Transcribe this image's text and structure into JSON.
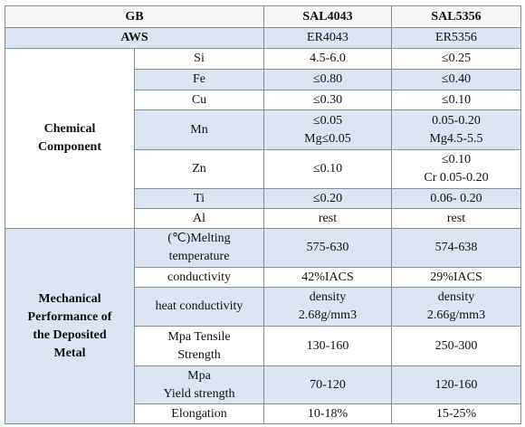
{
  "header": [
    "GB",
    "SAL4043",
    "SAL5356"
  ],
  "aws": [
    "AWS",
    "ER4043",
    "ER5356"
  ],
  "groups": [
    {
      "label": "Chemical\nComponent",
      "rows": [
        [
          "Si",
          "4.5-6.0",
          "≤0.25"
        ],
        [
          "Fe",
          "≤0.80",
          "≤0.40"
        ],
        [
          "Cu",
          "≤0.30",
          "≤0.10"
        ],
        [
          "Mn",
          "≤0.05\nMg≤0.05",
          "0.05-0.20\nMg4.5-5.5"
        ],
        [
          "Zn",
          "≤0.10",
          "≤0.10\nCr 0.05-0.20"
        ],
        [
          "Ti",
          "≤0.20",
          "0.06- 0.20"
        ],
        [
          "Al",
          "rest",
          "rest"
        ]
      ]
    },
    {
      "label": "Mechanical\nPerformance of\nthe Deposited\nMetal",
      "rows": [
        [
          "(℃)Melting\ntemperature",
          "575-630",
          "574-638"
        ],
        [
          "conductivity",
          "42%IACS",
          "29%IACS"
        ],
        [
          "heat conductivity",
          "density\n2.68g/mm3",
          "density\n2.66g/mm3"
        ],
        [
          "Mpa Tensile\nStrength",
          "130-160",
          "250-300"
        ],
        [
          "Mpa\nYield strength",
          "70-120",
          "120-160"
        ],
        [
          "Elongation",
          "10-18%",
          "15-25%"
        ]
      ]
    }
  ]
}
